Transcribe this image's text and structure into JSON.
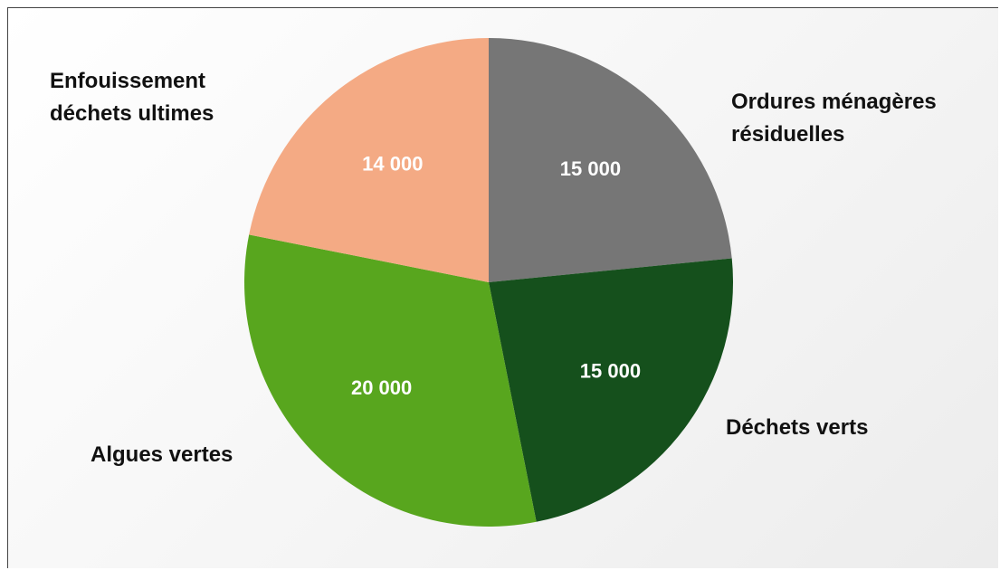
{
  "chart_data": {
    "type": "pie",
    "categories": [
      "Ordures ménagères résiduelles",
      "Déchets verts",
      "Algues vertes",
      "Enfouissement déchets ultimes"
    ],
    "values": [
      15000,
      15000,
      20000,
      14000
    ],
    "value_labels": [
      "15 000",
      "15 000",
      "20 000",
      "14 000"
    ],
    "colors": [
      "#767676",
      "#15501c",
      "#58a61e",
      "#f4aa84"
    ]
  }
}
